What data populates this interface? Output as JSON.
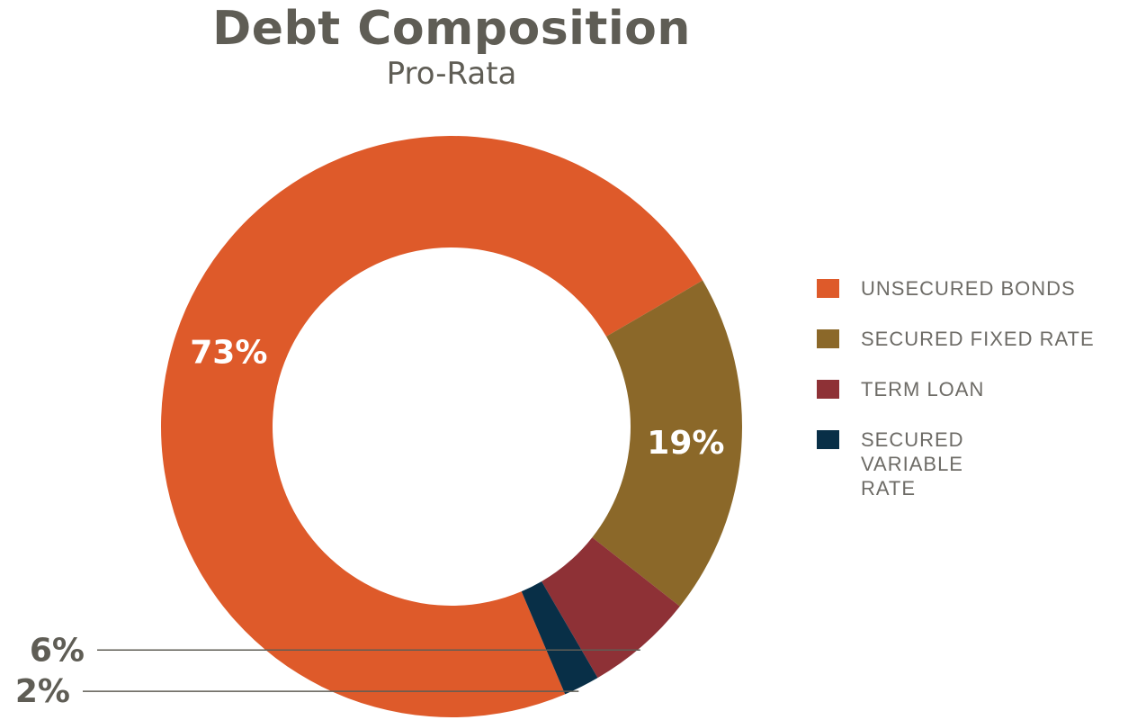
{
  "chart_data": {
    "type": "pie",
    "style": "donut",
    "title": "Debt Composition",
    "subtitle": "Pro-Rata",
    "slices": [
      {
        "label": "UNSECURED BONDS",
        "value": 73,
        "display": "73%",
        "color": "#de5a2a"
      },
      {
        "label": "SECURED FIXED RATE",
        "value": 19,
        "display": "19%",
        "color": "#8b6829"
      },
      {
        "label": "TERM LOAN",
        "value": 6,
        "display": "6%",
        "color": "#8e3136"
      },
      {
        "label": "SECURED VARIABLE RATE",
        "value": 2,
        "display": "2%",
        "color": "#082f47"
      }
    ],
    "legend_position": "right"
  }
}
